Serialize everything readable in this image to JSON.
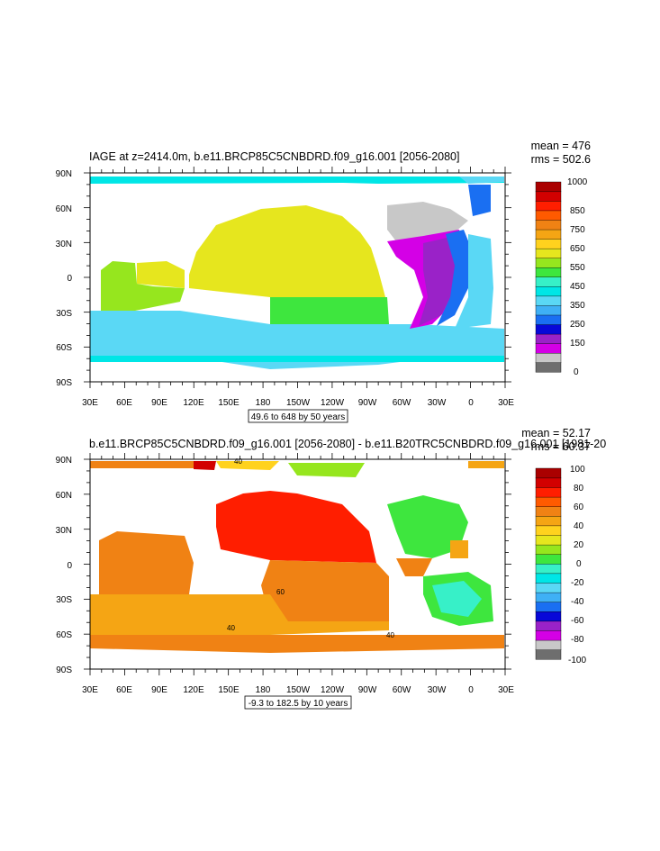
{
  "colors": {
    "ocean_default": "#ffffff"
  },
  "panels": [
    {
      "title": "IAGE at z=2414.0m, b.e11.BRCP85C5CNBDRD.f09_g16.001 [2056-2080]",
      "stats": {
        "mean": "mean = 476",
        "rms": "rms = 502.6"
      },
      "info": "49.6 to 648 by 50 years",
      "lat_ticks": [
        "90N",
        "60N",
        "30N",
        "0",
        "30S",
        "60S",
        "90S"
      ],
      "lon_ticks": [
        "30E",
        "60E",
        "90E",
        "120E",
        "150E",
        "180",
        "150W",
        "120W",
        "90W",
        "60W",
        "30W",
        "0",
        "30E"
      ],
      "colorbar": {
        "labels": [
          "1000",
          "850",
          "750",
          "650",
          "550",
          "450",
          "350",
          "250",
          "150",
          "0"
        ],
        "colors": [
          "#6e6e6e",
          "#c8c8c8",
          "#d400e6",
          "#9a22c8",
          "#0808d8",
          "#1a6ff2",
          "#3fb0f5",
          "#5ad8f5",
          "#00e6e6",
          "#37f0c8",
          "#3ee63e",
          "#96e61e",
          "#e6e61e",
          "#ffd21e",
          "#f5a514",
          "#f08214",
          "#ff5a00",
          "#ff1e00",
          "#d20000",
          "#aa0000"
        ]
      },
      "contour_labels": []
    },
    {
      "title": "b.e11.BRCP85C5CNBDRD.f09_g16.001 [2056-2080] - b.e11.B20TRC5CNBDRD.f09_g16.001 [1981-20",
      "stats": {
        "mean": "mean = 52.17",
        "rms": "rms = 60.37"
      },
      "info": "-9.3 to 182.5 by 10 years",
      "lat_ticks": [
        "90N",
        "60N",
        "30N",
        "0",
        "30S",
        "60S",
        "90S"
      ],
      "lon_ticks": [
        "30E",
        "60E",
        "90E",
        "120E",
        "150E",
        "180",
        "150W",
        "120W",
        "90W",
        "60W",
        "30W",
        "0",
        "30E"
      ],
      "colorbar": {
        "labels": [
          "100",
          "80",
          "60",
          "40",
          "20",
          "0",
          "-20",
          "-40",
          "-60",
          "-80",
          "-100"
        ],
        "colors": [
          "#6e6e6e",
          "#c8c8c8",
          "#d400e6",
          "#9a22c8",
          "#0808d8",
          "#1a6ff2",
          "#3fb0f5",
          "#5ad8f5",
          "#00e6e6",
          "#37f0c8",
          "#3ee63e",
          "#96e61e",
          "#e6e61e",
          "#ffd21e",
          "#f5a514",
          "#f08214",
          "#ff5a00",
          "#ff1e00",
          "#d20000",
          "#aa0000"
        ]
      },
      "contour_labels": [
        "40",
        "60",
        "40",
        "40"
      ]
    }
  ]
}
